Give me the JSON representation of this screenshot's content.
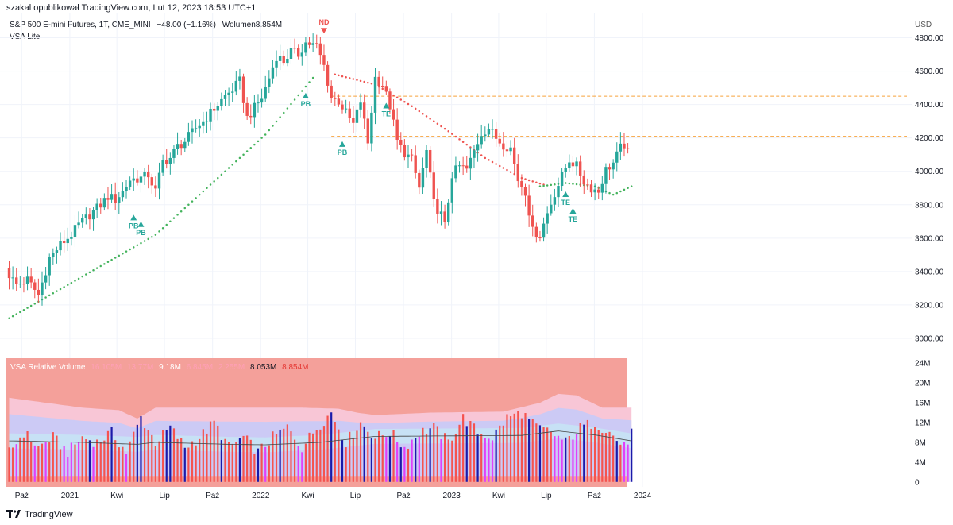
{
  "header": {
    "text": "szakal opublikował TradingView.com, Lut 12, 2023 18:53 UTC+1"
  },
  "symbol": {
    "name": "S&P 500 E-mini Futures, 1T, CME_MINI",
    "change": "−48.00 (−1.16%)",
    "volume_label": "Wolumen",
    "volume_value": "8.854M"
  },
  "indicator": {
    "name": "VSA Lite"
  },
  "currency": "USD",
  "colors": {
    "up": "#26a69a",
    "down": "#ef5350",
    "grid": "#f0f3fa",
    "trail_up": "#43b35c",
    "trail_down": "#ef5350",
    "level": "#f7a23b",
    "vol_bg": "#f4a09a",
    "band_pink": "#f8c6d6",
    "band_lavender": "#cccaf5",
    "band_lightblue": "#c7e1f5",
    "bar_red": "#f5534f",
    "bar_magenta": "#e040fb",
    "bar_blue": "#1a1aaa",
    "avg_line": "#444444"
  },
  "vsa_legend": {
    "title": "VSA Relative Volume",
    "values": [
      {
        "text": "16.105M",
        "color": "#ff9fb6"
      },
      {
        "text": "13.77M",
        "color": "#ff9fb6"
      },
      {
        "text": "9.18M",
        "color": "#ffffff"
      },
      {
        "text": "6.845M",
        "color": "#ff9fb6"
      },
      {
        "text": "2.255M",
        "color": "#ff9fb6"
      },
      {
        "text": "8.053M",
        "color": "#131722"
      },
      {
        "text": "8.854M",
        "color": "#e53935"
      }
    ]
  },
  "chart_data": [
    {
      "type": "candlestick",
      "title": "S&P 500 E-mini Futures, 1T, CME_MINI",
      "ylim": [
        2900,
        4950
      ],
      "y_ticks": [
        "3000.00",
        "3200.00",
        "3400.00",
        "3600.00",
        "3800.00",
        "4000.00",
        "4200.00",
        "4400.00",
        "4600.00",
        "4800.00"
      ],
      "x_ticks": [
        "Paź",
        "2021",
        "Kwi",
        "Lip",
        "Paź",
        "2022",
        "Kwi",
        "Lip",
        "Paź",
        "2023",
        "Kwi",
        "Lip",
        "Paź",
        "2024"
      ],
      "x_tick_dates": [
        "2020-10",
        "2021-01",
        "2021-04",
        "2021-07",
        "2021-10",
        "2022-01",
        "2022-04",
        "2022-07",
        "2022-10",
        "2023-01",
        "2023-04",
        "2023-07",
        "2023-10",
        "2024-01"
      ],
      "first_bar_date": "2020-09-07",
      "bar_interval": "1 week",
      "close_path": [
        [
          0,
          3380
        ],
        [
          2,
          3320
        ],
        [
          5,
          3350
        ],
        [
          8,
          3260
        ],
        [
          11,
          3480
        ],
        [
          14,
          3560
        ],
        [
          17,
          3620
        ],
        [
          19,
          3680
        ],
        [
          21,
          3720
        ],
        [
          23,
          3760
        ],
        [
          25,
          3800
        ],
        [
          27,
          3850
        ],
        [
          29,
          3830
        ],
        [
          31,
          3880
        ],
        [
          33,
          3950
        ],
        [
          36,
          3960
        ],
        [
          38,
          3980
        ],
        [
          40,
          3880
        ],
        [
          42,
          4060
        ],
        [
          44,
          4080
        ],
        [
          46,
          4150
        ],
        [
          48,
          4180
        ],
        [
          51,
          4260
        ],
        [
          53,
          4300
        ],
        [
          55,
          4350
        ],
        [
          57,
          4400
        ],
        [
          59,
          4450
        ],
        [
          61,
          4490
        ],
        [
          63,
          4540
        ],
        [
          65,
          4320
        ],
        [
          67,
          4380
        ],
        [
          69,
          4440
        ],
        [
          71,
          4560
        ],
        [
          73,
          4690
        ],
        [
          75,
          4660
        ],
        [
          77,
          4720
        ],
        [
          79,
          4700
        ],
        [
          81,
          4770
        ],
        [
          84,
          4750
        ],
        [
          86,
          4630
        ],
        [
          88,
          4440
        ],
        [
          90,
          4420
        ],
        [
          92,
          4350
        ],
        [
          94,
          4280
        ],
        [
          96,
          4420
        ],
        [
          98,
          4170
        ],
        [
          100,
          4560
        ],
        [
          102,
          4520
        ],
        [
          104,
          4390
        ],
        [
          106,
          4180
        ],
        [
          108,
          4110
        ],
        [
          110,
          4070
        ],
        [
          112,
          3900
        ],
        [
          114,
          4120
        ],
        [
          116,
          3810
        ],
        [
          118,
          3740
        ],
        [
          119,
          3670
        ],
        [
          121,
          3980
        ],
        [
          123,
          4030
        ],
        [
          125,
          4010
        ],
        [
          127,
          4120
        ],
        [
          129,
          4230
        ],
        [
          131,
          4260
        ],
        [
          133,
          4200
        ],
        [
          135,
          4160
        ],
        [
          137,
          4140
        ],
        [
          139,
          3950
        ],
        [
          141,
          3880
        ],
        [
          143,
          3640
        ],
        [
          145,
          3620
        ],
        [
          147,
          3750
        ],
        [
          149,
          3870
        ],
        [
          151,
          3970
        ],
        [
          153,
          4070
        ],
        [
          155,
          4030
        ],
        [
          157,
          3940
        ],
        [
          159,
          3900
        ],
        [
          161,
          3880
        ],
        [
          163,
          4010
        ],
        [
          165,
          4050
        ],
        [
          167,
          4140
        ],
        [
          168,
          4160
        ],
        [
          169,
          4110
        ]
      ],
      "trail": [
        {
          "direction": "up",
          "points": [
            [
              0,
              3120
            ],
            [
              40,
              3620
            ],
            [
              70,
              4220
            ],
            [
              83,
              4560
            ]
          ]
        },
        {
          "direction": "down",
          "points": [
            [
              89,
              4580
            ],
            [
              100,
              4520
            ],
            [
              110,
              4390
            ],
            [
              120,
              4240
            ],
            [
              130,
              4080
            ],
            [
              140,
              3960
            ],
            [
              146,
              3920
            ]
          ]
        },
        {
          "direction": "up",
          "points": [
            [
              145,
              3910
            ],
            [
              152,
              3930
            ],
            [
              160,
              3910
            ],
            [
              165,
              3860
            ],
            [
              170,
              3910
            ]
          ]
        }
      ],
      "levels": [
        {
          "y": 4450,
          "from_bar": 88
        },
        {
          "y": 4210,
          "from_bar": 88
        }
      ],
      "signals": [
        {
          "label": "ND",
          "bar": 86,
          "y": 4830,
          "direction": "down",
          "color": "#ef5350"
        },
        {
          "label": "PB",
          "bar": 34,
          "y": 3740,
          "direction": "up",
          "color": "#26a69a"
        },
        {
          "label": "PB",
          "bar": 36,
          "y": 3700,
          "direction": "up",
          "color": "#26a69a"
        },
        {
          "label": "PB",
          "bar": 81,
          "y": 4470,
          "direction": "up",
          "color": "#26a69a"
        },
        {
          "label": "PB",
          "bar": 91,
          "y": 4180,
          "direction": "up",
          "color": "#26a69a"
        },
        {
          "label": "TE",
          "bar": 103,
          "y": 4410,
          "direction": "up",
          "color": "#26a69a"
        },
        {
          "label": "TE",
          "bar": 152,
          "y": 3880,
          "direction": "up",
          "color": "#26a69a"
        },
        {
          "label": "TE",
          "bar": 154,
          "y": 3780,
          "direction": "up",
          "color": "#26a69a"
        }
      ]
    },
    {
      "type": "bar",
      "title": "VSA Relative Volume",
      "ylim": [
        -1,
        25
      ],
      "y_ticks": [
        "0",
        "4M",
        "8M",
        "12M",
        "16M",
        "20M",
        "24M"
      ],
      "band_upper_path": [
        [
          0,
          17
        ],
        [
          20,
          15
        ],
        [
          30,
          14.5
        ],
        [
          35,
          12.8
        ],
        [
          40,
          15
        ],
        [
          60,
          15
        ],
        [
          80,
          15
        ],
        [
          90,
          14.8
        ],
        [
          95,
          14
        ],
        [
          100,
          13.5
        ],
        [
          115,
          14
        ],
        [
          135,
          14.2
        ],
        [
          145,
          16
        ],
        [
          150,
          17.8
        ],
        [
          155,
          17.5
        ],
        [
          162,
          15
        ],
        [
          170,
          15
        ]
      ],
      "avg_path": [
        [
          0,
          8.3
        ],
        [
          20,
          8
        ],
        [
          35,
          7.6
        ],
        [
          40,
          8
        ],
        [
          60,
          7.6
        ],
        [
          70,
          7.5
        ],
        [
          85,
          8
        ],
        [
          100,
          9.2
        ],
        [
          120,
          9.3
        ],
        [
          140,
          9.4
        ],
        [
          150,
          10.3
        ],
        [
          160,
          9.5
        ],
        [
          170,
          8.3
        ]
      ],
      "volume_path": [
        [
          0,
          6
        ],
        [
          4,
          10
        ],
        [
          8,
          7
        ],
        [
          12,
          9
        ],
        [
          16,
          6
        ],
        [
          20,
          9
        ],
        [
          24,
          8
        ],
        [
          28,
          10
        ],
        [
          32,
          6
        ],
        [
          36,
          13
        ],
        [
          40,
          8
        ],
        [
          44,
          11
        ],
        [
          48,
          7
        ],
        [
          52,
          9
        ],
        [
          56,
          12
        ],
        [
          60,
          7
        ],
        [
          64,
          9
        ],
        [
          68,
          6
        ],
        [
          72,
          9
        ],
        [
          76,
          11
        ],
        [
          80,
          7
        ],
        [
          84,
          11
        ],
        [
          88,
          14
        ],
        [
          92,
          8
        ],
        [
          96,
          12
        ],
        [
          100,
          9
        ],
        [
          104,
          10
        ],
        [
          108,
          7
        ],
        [
          112,
          10
        ],
        [
          116,
          11
        ],
        [
          120,
          8
        ],
        [
          124,
          13
        ],
        [
          128,
          10
        ],
        [
          132,
          9
        ],
        [
          136,
          13
        ],
        [
          140,
          14
        ],
        [
          144,
          11
        ],
        [
          148,
          10
        ],
        [
          152,
          8
        ],
        [
          156,
          11
        ],
        [
          160,
          12
        ],
        [
          164,
          10
        ],
        [
          168,
          7
        ],
        [
          170,
          10
        ]
      ],
      "blue_bars": [
        22,
        28,
        35,
        36,
        43,
        44,
        48,
        58,
        63,
        68,
        74,
        88,
        91,
        97,
        99,
        104,
        107,
        111,
        115,
        125,
        128,
        133,
        142,
        145,
        152,
        157,
        166,
        170
      ]
    }
  ]
}
